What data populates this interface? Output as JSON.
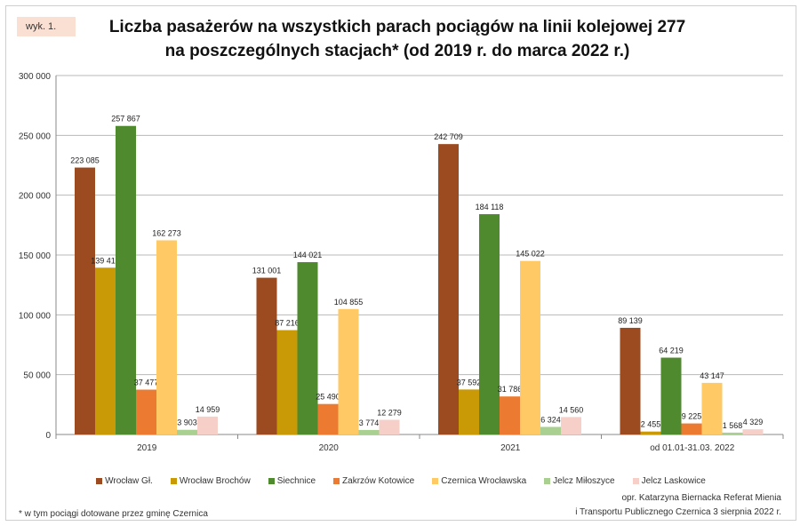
{
  "tag": "wyk. 1.",
  "title_line1": "Liczba pasażerów na wszystkich parach pociągów  na linii kolejowej 277",
  "title_line2": "na poszczególnych stacjach* (od 2019 r. do marca 2022 r.)",
  "footnote": "* w tym pociągi dotowane przez gminę Czernica",
  "credit_line1": "opr. Katarzyna Biernacka Referat Mienia",
  "credit_line2": "i Transportu Publicznego Czernica 3 sierpnia 2022 r.",
  "chart_data": {
    "type": "bar",
    "title": "Liczba pasażerów na wszystkich parach pociągów na linii kolejowej 277 na poszczególnych stacjach* (od 2019 r. do marca 2022 r.)",
    "categories": [
      "2019",
      "2020",
      "2021",
      "od 01.01-31.03. 2022"
    ],
    "ylim": [
      0,
      300000
    ],
    "yticks": [
      "0",
      "50 000",
      "100 000",
      "150 000",
      "200 000",
      "250 000",
      "300 000"
    ],
    "grid": true,
    "legend": "bottom",
    "series": [
      {
        "name": "Wrocław Gł.",
        "color": "#9c4a1f",
        "values": [
          223085,
          131001,
          242709,
          89139
        ],
        "labels": [
          "223 085",
          "131 001",
          "242 709",
          "89 139"
        ]
      },
      {
        "name": "Wrocław Brochów",
        "color": "#c99a06",
        "values": [
          139416,
          87216,
          37592,
          2455
        ],
        "labels": [
          "139 416",
          "87 216",
          "37 592",
          "2 455"
        ]
      },
      {
        "name": "Siechnice",
        "color": "#4f8a2f",
        "values": [
          257867,
          144021,
          184118,
          64219
        ],
        "labels": [
          "257 867",
          "144 021",
          "184 118",
          "64 219"
        ]
      },
      {
        "name": "Zakrzów Kotowice",
        "color": "#ec7a30",
        "values": [
          37477,
          25490,
          31786,
          9225
        ],
        "labels": [
          "37 477",
          "25 490",
          "31 786",
          "9 225"
        ]
      },
      {
        "name": "Czernica  Wrocławska",
        "color": "#ffca66",
        "values": [
          162273,
          104855,
          145022,
          43147
        ],
        "labels": [
          "162 273",
          "104 855",
          "145 022",
          "43 147"
        ]
      },
      {
        "name": "Jelcz Miłoszyce",
        "color": "#a9cf91",
        "values": [
          3903,
          3774,
          6324,
          1568
        ],
        "labels": [
          "3 903",
          "3 774",
          "6 324",
          "1 568"
        ]
      },
      {
        "name": "Jelcz Laskowice",
        "color": "#f5cfc8",
        "values": [
          14959,
          12279,
          14560,
          4329
        ],
        "labels": [
          "14 959",
          "12 279",
          "14 560",
          "4 329"
        ]
      }
    ]
  }
}
